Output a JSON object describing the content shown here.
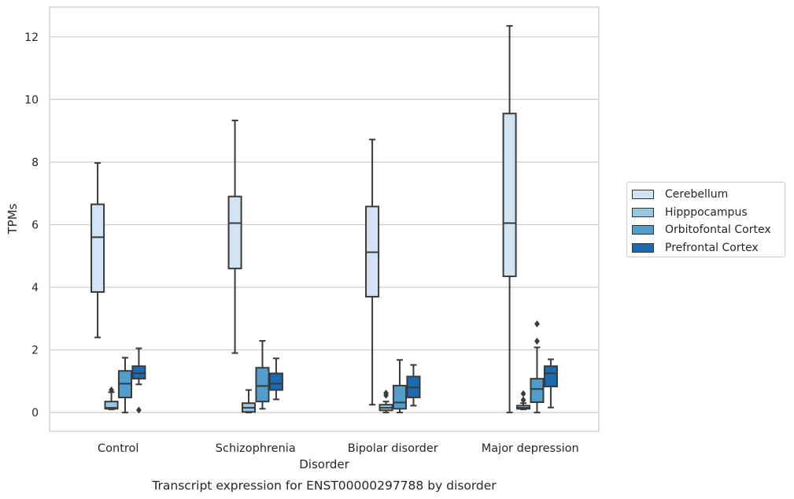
{
  "chart_data": {
    "type": "boxplot",
    "title": "Transcript expression for ENST00000297788 by disorder",
    "xlabel": "Disorder",
    "ylabel": "TPMs",
    "ylim": [
      -0.6,
      12.95
    ],
    "yticks": [
      0,
      2,
      4,
      6,
      8,
      10,
      12
    ],
    "grid": true,
    "legend_position": "right",
    "categories": [
      "Control",
      "Schizophrenia",
      "Bipolar disorder",
      "Major depression"
    ],
    "series": [
      {
        "name": "Cerebellum",
        "color": "#d2e3f3",
        "boxes": [
          {
            "whislo": 2.4,
            "q1": 3.85,
            "med": 5.6,
            "q3": 6.65,
            "whishi": 7.97,
            "fliers": []
          },
          {
            "whislo": 1.9,
            "q1": 4.6,
            "med": 6.05,
            "q3": 6.9,
            "whishi": 9.33,
            "fliers": []
          },
          {
            "whislo": 0.25,
            "q1": 3.7,
            "med": 5.12,
            "q3": 6.58,
            "whishi": 8.72,
            "fliers": []
          },
          {
            "whislo": 0.0,
            "q1": 4.35,
            "med": 6.05,
            "q3": 9.55,
            "whishi": 12.35,
            "fliers": []
          }
        ]
      },
      {
        "name": "Hipppocampus",
        "color": "#9ac8e0",
        "boxes": [
          {
            "whislo": 0.1,
            "q1": 0.12,
            "med": 0.15,
            "q3": 0.35,
            "whishi": 0.65,
            "fliers": [
              0.72
            ]
          },
          {
            "whislo": 0.0,
            "q1": 0.02,
            "med": 0.15,
            "q3": 0.3,
            "whishi": 0.72,
            "fliers": []
          },
          {
            "whislo": 0.0,
            "q1": 0.07,
            "med": 0.15,
            "q3": 0.25,
            "whishi": 0.35,
            "fliers": [
              0.55,
              0.62
            ]
          },
          {
            "whislo": 0.1,
            "q1": 0.12,
            "med": 0.15,
            "q3": 0.22,
            "whishi": 0.3,
            "fliers": [
              0.4,
              0.6
            ]
          }
        ]
      },
      {
        "name": "Orbitofontal Cortex",
        "color": "#529dcc",
        "boxes": [
          {
            "whislo": 0.0,
            "q1": 0.48,
            "med": 0.92,
            "q3": 1.33,
            "whishi": 1.75,
            "fliers": []
          },
          {
            "whislo": 0.12,
            "q1": 0.35,
            "med": 0.85,
            "q3": 1.43,
            "whishi": 2.29,
            "fliers": []
          },
          {
            "whislo": 0.0,
            "q1": 0.12,
            "med": 0.32,
            "q3": 0.86,
            "whishi": 1.68,
            "fliers": []
          },
          {
            "whislo": 0.0,
            "q1": 0.33,
            "med": 0.75,
            "q3": 1.08,
            "whishi": 2.08,
            "fliers": [
              2.28,
              2.83
            ]
          }
        ]
      },
      {
        "name": "Prefrontal Cortex",
        "color": "#1c6aaf",
        "boxes": [
          {
            "whislo": 0.9,
            "q1": 1.08,
            "med": 1.25,
            "q3": 1.48,
            "whishi": 2.05,
            "fliers": [
              0.08
            ]
          },
          {
            "whislo": 0.42,
            "q1": 0.72,
            "med": 0.92,
            "q3": 1.25,
            "whishi": 1.73,
            "fliers": []
          },
          {
            "whislo": 0.22,
            "q1": 0.48,
            "med": 0.8,
            "q3": 1.15,
            "whishi": 1.52,
            "fliers": []
          },
          {
            "whislo": 0.16,
            "q1": 0.83,
            "med": 1.25,
            "q3": 1.48,
            "whishi": 1.7,
            "fliers": []
          }
        ]
      }
    ]
  }
}
